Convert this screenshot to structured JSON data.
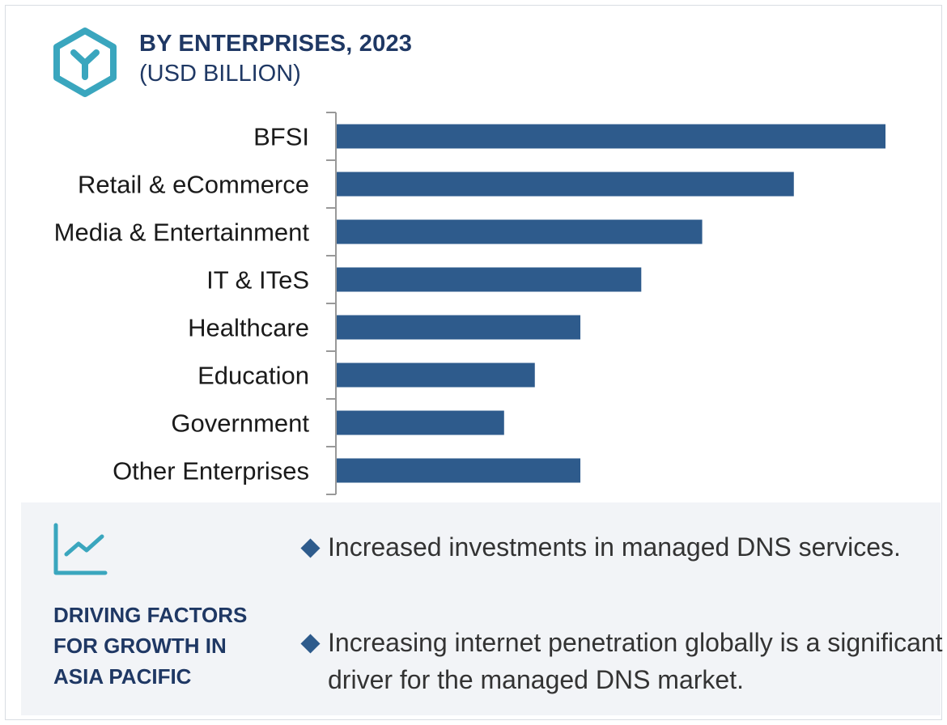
{
  "header": {
    "title": "BY ENTERPRISES, 2023",
    "subtitle": "(USD BILLION)",
    "icon": "hexagon-y-icon"
  },
  "chart_data": {
    "type": "bar",
    "orientation": "horizontal",
    "title": "BY ENTERPRISES, 2023",
    "unit": "(USD BILLION)",
    "categories": [
      "BFSI",
      "Retail & eCommerce",
      "Media & Entertainment",
      "IT & ITeS",
      "Healthcare",
      "Education",
      "Government",
      "Other Enterprises"
    ],
    "values": [
      100,
      83.3,
      66.6,
      55.5,
      44.4,
      36.1,
      30.5,
      44.4
    ],
    "xlabel": "",
    "ylabel": "",
    "xlim": [
      0,
      100
    ],
    "grid": false,
    "bar_color": "#2e5b8c",
    "axis_color": "#999999"
  },
  "panel": {
    "icon": "trend-chart-icon",
    "heading": "DRIVING FACTORS FOR GROWTH IN ASIA PACIFIC",
    "bullets": [
      "Increased investments in managed DNS services.",
      "Increasing internet penetration globally is a significant driver for the managed DNS market."
    ],
    "background": "#f2f4f7",
    "accent": "#3aa6be"
  }
}
